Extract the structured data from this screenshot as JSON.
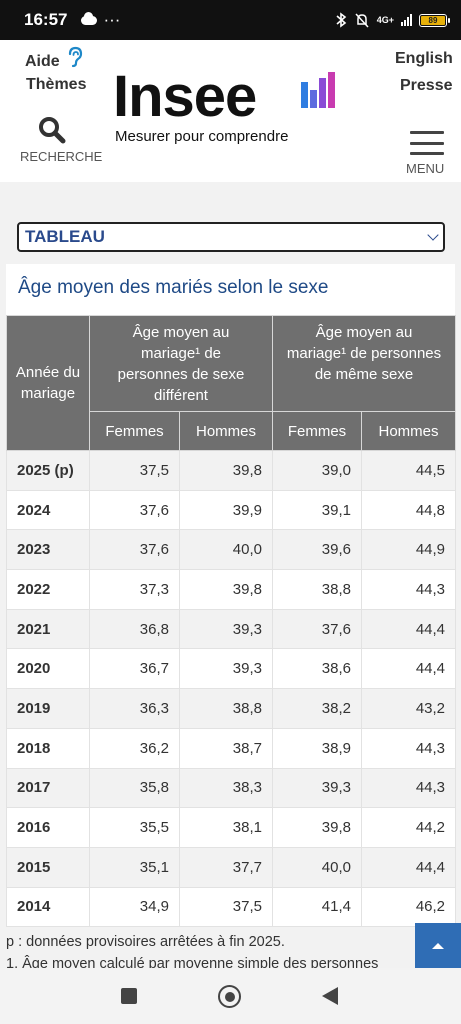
{
  "status": {
    "time": "16:57",
    "dots": "···",
    "network": "4G+",
    "battery": "89"
  },
  "header": {
    "aide": "Aide",
    "themes": "Thèmes",
    "english": "English",
    "presse": "Presse",
    "logo": "Insee",
    "tagline": "Mesurer pour comprendre",
    "search_label": "RECHERCHE",
    "menu_label": "MENU",
    "brand_colors": [
      "#2f7de1",
      "#8a4bd6",
      "#c83bb0"
    ]
  },
  "select": {
    "value": "TABLEAU"
  },
  "table": {
    "title": "Âge moyen des mariés selon le sexe",
    "col_year": "Année du mariage",
    "group1": "Âge moyen au mariage¹ de personnes de sexe différent",
    "group2": "Âge moyen au mariage¹ de personnes de même sexe",
    "sub": [
      "Femmes",
      "Hommes",
      "Femmes",
      "Hommes"
    ],
    "rows": [
      {
        "year": "2025 (p)",
        "v": [
          "37,5",
          "39,8",
          "39,0",
          "44,5"
        ]
      },
      {
        "year": "2024",
        "v": [
          "37,6",
          "39,9",
          "39,1",
          "44,8"
        ]
      },
      {
        "year": "2023",
        "v": [
          "37,6",
          "40,0",
          "39,6",
          "44,9"
        ]
      },
      {
        "year": "2022",
        "v": [
          "37,3",
          "39,8",
          "38,8",
          "44,3"
        ]
      },
      {
        "year": "2021",
        "v": [
          "36,8",
          "39,3",
          "37,6",
          "44,4"
        ]
      },
      {
        "year": "2020",
        "v": [
          "36,7",
          "39,3",
          "38,6",
          "44,4"
        ]
      },
      {
        "year": "2019",
        "v": [
          "36,3",
          "38,8",
          "38,2",
          "43,2"
        ]
      },
      {
        "year": "2018",
        "v": [
          "36,2",
          "38,7",
          "38,9",
          "44,3"
        ]
      },
      {
        "year": "2017",
        "v": [
          "35,8",
          "38,3",
          "39,3",
          "44,3"
        ]
      },
      {
        "year": "2016",
        "v": [
          "35,5",
          "38,1",
          "39,8",
          "44,2"
        ]
      },
      {
        "year": "2015",
        "v": [
          "35,1",
          "37,7",
          "40,0",
          "44,4"
        ]
      },
      {
        "year": "2014",
        "v": [
          "34,9",
          "37,5",
          "41,4",
          "46,2"
        ]
      }
    ]
  },
  "notes": {
    "p": "p : données provisoires arrêtées à fin 2025.",
    "n1": "1. Âge moyen calculé par moyenne simple des personnes"
  }
}
